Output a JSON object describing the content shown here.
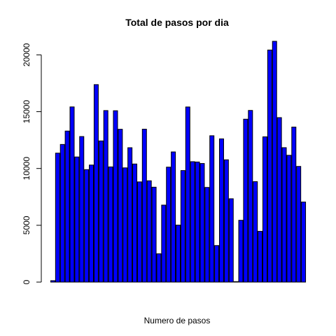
{
  "chart_data": {
    "type": "bar",
    "title": "Total de pasos por dia",
    "xlabel": "Numero de pasos",
    "ylabel": "",
    "ylim": [
      0,
      21194
    ],
    "yticks": [
      0,
      5000,
      10000,
      15000,
      20000
    ],
    "bar_color": "#0000ff",
    "values": [
      126,
      11352,
      12116,
      13294,
      15420,
      11015,
      12811,
      9900,
      10304,
      17382,
      12426,
      15098,
      10139,
      15084,
      13452,
      10056,
      11829,
      10395,
      8821,
      13460,
      8918,
      8355,
      2492,
      6778,
      10119,
      11458,
      5018,
      9819,
      15414,
      10600,
      10571,
      10439,
      8334,
      12883,
      3219,
      12608,
      10765,
      7336,
      41,
      5441,
      14339,
      15110,
      8841,
      4472,
      12787,
      20427,
      21194,
      14478,
      11834,
      11162,
      13646,
      10183,
      7047
    ]
  }
}
